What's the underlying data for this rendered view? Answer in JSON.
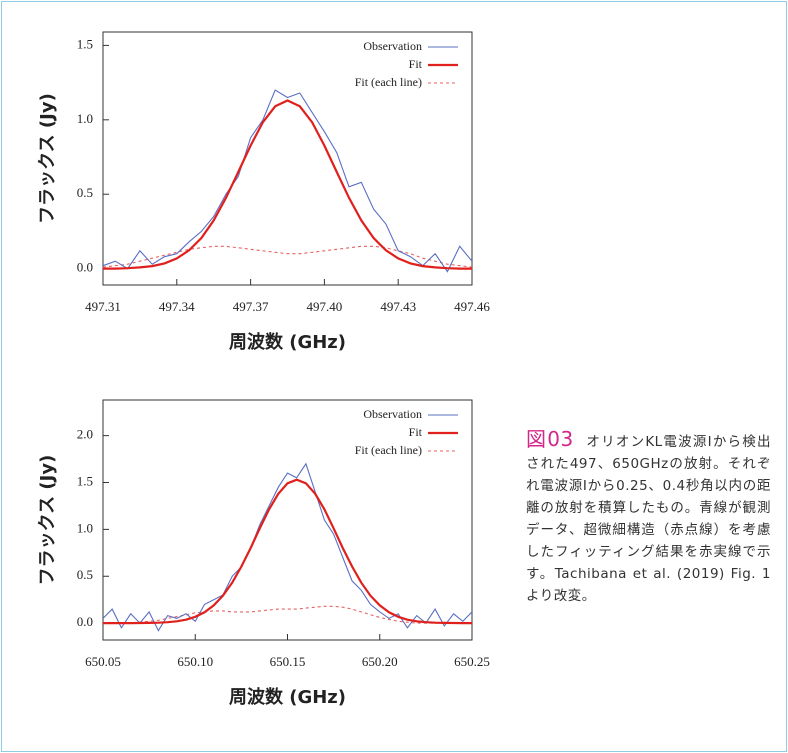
{
  "chart_data": [
    {
      "type": "line",
      "xlabel": "周波数 (GHz)",
      "ylabel": "フラックス (Jy)",
      "x": [
        497.31,
        497.315,
        497.32,
        497.325,
        497.33,
        497.335,
        497.34,
        497.345,
        497.35,
        497.355,
        497.36,
        497.365,
        497.37,
        497.375,
        497.38,
        497.385,
        497.39,
        497.395,
        497.4,
        497.405,
        497.41,
        497.415,
        497.42,
        497.425,
        497.43,
        497.435,
        497.44,
        497.445,
        497.45,
        497.455,
        497.46
      ],
      "series": [
        {
          "name": "Observation",
          "color": "#5a6fc4",
          "style": "solid",
          "values": [
            0.02,
            0.05,
            0.0,
            0.12,
            0.03,
            0.08,
            0.1,
            0.18,
            0.25,
            0.35,
            0.5,
            0.62,
            0.88,
            1.0,
            1.2,
            1.15,
            1.18,
            1.05,
            0.92,
            0.78,
            0.55,
            0.58,
            0.4,
            0.3,
            0.12,
            0.08,
            0.02,
            0.1,
            -0.02,
            0.15,
            0.05
          ]
        },
        {
          "name": "Fit",
          "color": "#e0201c",
          "style": "solid",
          "values": [
            0,
            0,
            0.003,
            0.008,
            0.017,
            0.035,
            0.069,
            0.123,
            0.206,
            0.324,
            0.476,
            0.65,
            0.827,
            0.984,
            1.091,
            1.13,
            1.091,
            0.984,
            0.827,
            0.65,
            0.476,
            0.324,
            0.206,
            0.123,
            0.069,
            0.035,
            0.017,
            0.008,
            0.003,
            0,
            0
          ]
        },
        {
          "name": "Fit (each line)",
          "color": "#e86060",
          "style": "dashed",
          "values": [
            0.01,
            0.02,
            0.03,
            0.05,
            0.07,
            0.09,
            0.11,
            0.13,
            0.14,
            0.15,
            0.15,
            0.14,
            0.13,
            0.12,
            0.11,
            0.1,
            0.1,
            0.11,
            0.12,
            0.13,
            0.14,
            0.15,
            0.15,
            0.14,
            0.12,
            0.1,
            0.07,
            0.05,
            0.03,
            0.02,
            0.01
          ]
        }
      ],
      "xlim": [
        497.31,
        497.46
      ],
      "xticks": [
        497.31,
        497.34,
        497.37,
        {
          "value": 497.4,
          "label": "497.40"
        },
        497.43,
        497.46
      ],
      "ylim": [
        -0.11,
        1.59
      ],
      "yticks": [
        {
          "value": 0,
          "label": "0.0"
        },
        0.5,
        {
          "value": 1,
          "label": "1.0"
        },
        1.5
      ],
      "legend": "upper right"
    },
    {
      "type": "line",
      "xlabel": "周波数 (GHz)",
      "ylabel": "フラックス (Jy)",
      "x": [
        650.05,
        650.055,
        650.06,
        650.065,
        650.07,
        650.075,
        650.08,
        650.085,
        650.09,
        650.095,
        650.1,
        650.105,
        650.11,
        650.115,
        650.12,
        650.125,
        650.13,
        650.135,
        650.14,
        650.145,
        650.15,
        650.155,
        650.16,
        650.165,
        650.17,
        650.175,
        650.18,
        650.185,
        650.19,
        650.195,
        650.2,
        650.205,
        650.21,
        650.215,
        650.22,
        650.225,
        650.23,
        650.235,
        650.24,
        650.245,
        650.25
      ],
      "series": [
        {
          "name": "Observation",
          "color": "#5a6fc4",
          "style": "solid",
          "values": [
            0.05,
            0.15,
            -0.05,
            0.1,
            0.0,
            0.12,
            -0.08,
            0.08,
            0.05,
            0.1,
            0.02,
            0.2,
            0.25,
            0.3,
            0.5,
            0.6,
            0.8,
            1.05,
            1.25,
            1.45,
            1.6,
            1.55,
            1.7,
            1.4,
            1.1,
            0.95,
            0.7,
            0.45,
            0.35,
            0.2,
            0.12,
            0.05,
            0.1,
            -0.05,
            0.08,
            0.0,
            0.15,
            -0.03,
            0.1,
            0.02,
            0.12
          ]
        },
        {
          "name": "Fit",
          "color": "#e0201c",
          "style": "solid",
          "values": [
            0,
            0,
            0,
            0,
            0.001,
            0.002,
            0.005,
            0.01,
            0.02,
            0.037,
            0.067,
            0.116,
            0.189,
            0.293,
            0.431,
            0.604,
            0.8,
            1.012,
            1.214,
            1.38,
            1.491,
            1.53,
            1.491,
            1.38,
            1.214,
            1.012,
            0.8,
            0.604,
            0.431,
            0.293,
            0.189,
            0.116,
            0.067,
            0.037,
            0.02,
            0.01,
            0.005,
            0.002,
            0.001,
            0,
            0
          ]
        },
        {
          "name": "Fit (each line)",
          "color": "#e86060",
          "style": "dashed",
          "values": [
            0,
            0,
            0,
            0,
            0.01,
            0.02,
            0.03,
            0.05,
            0.07,
            0.09,
            0.11,
            0.12,
            0.13,
            0.13,
            0.12,
            0.12,
            0.12,
            0.13,
            0.14,
            0.15,
            0.15,
            0.15,
            0.16,
            0.17,
            0.18,
            0.18,
            0.17,
            0.15,
            0.12,
            0.09,
            0.06,
            0.04,
            0.02,
            0.01,
            0,
            0,
            0,
            0,
            0,
            0,
            0
          ]
        }
      ],
      "xlim": [
        650.05,
        650.25
      ],
      "xticks": [
        650.05,
        {
          "value": 650.1,
          "label": "650.10"
        },
        650.15,
        {
          "value": 650.2,
          "label": "650.20"
        },
        650.25
      ],
      "ylim": [
        -0.18,
        2.38
      ],
      "yticks": [
        {
          "value": 0,
          "label": "0.0"
        },
        0.5,
        {
          "value": 1,
          "label": "1.0"
        },
        1.5,
        {
          "value": 2,
          "label": "2.0"
        }
      ],
      "legend": "upper right"
    }
  ],
  "caption": {
    "label": "図03",
    "text": "オリオンKL電波源Iから検出された497、650GHzの放射。それぞれ電波源Iから0.25、0.4秒角以内の距離の放射を積算したもの。青線が観測データ、超微細構造（赤点線）を考慮したフィッティング結果を赤実線で示す。Tachibana et al. (2019) Fig. 1より改変。"
  }
}
